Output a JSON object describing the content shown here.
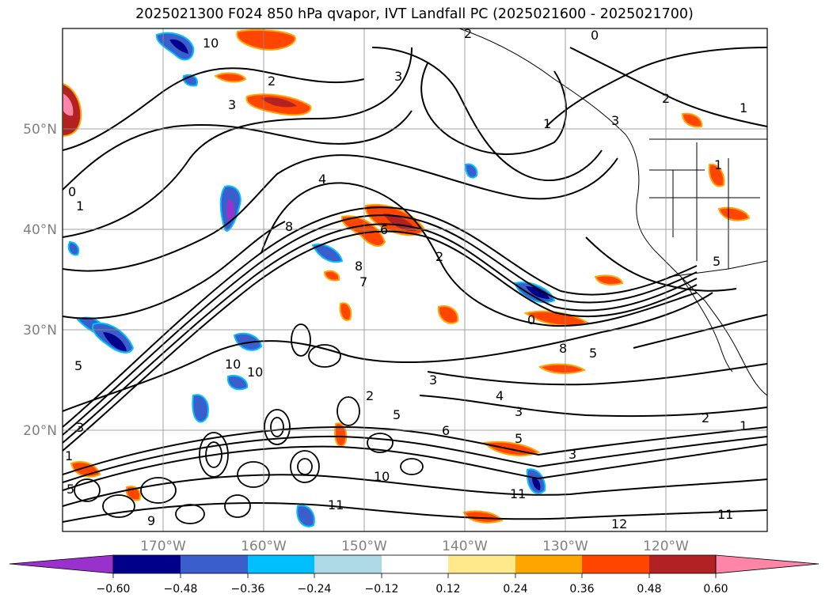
{
  "title": "2025021300 F024 850 hPa qvapor, IVT Landfall PC (2025021600 - 2025021700)",
  "map": {
    "lat_labels": [
      "50°N",
      "40°N",
      "30°N",
      "20°N"
    ],
    "lon_labels": [
      "170°W",
      "160°W",
      "150°W",
      "140°W",
      "130°W",
      "120°W"
    ],
    "grid_color": "#8c8c8c",
    "contour_labels": [
      {
        "text": "10"
      },
      {
        "text": "2"
      },
      {
        "text": "3"
      },
      {
        "text": "2"
      },
      {
        "text": "0"
      },
      {
        "text": "3"
      },
      {
        "text": "1"
      },
      {
        "text": "2"
      },
      {
        "text": "1"
      },
      {
        "text": "3"
      },
      {
        "text": "4"
      },
      {
        "text": "0"
      },
      {
        "text": "1"
      },
      {
        "text": "8"
      },
      {
        "text": "2"
      },
      {
        "text": "8"
      },
      {
        "text": "7"
      },
      {
        "text": "6"
      },
      {
        "text": "0"
      },
      {
        "text": "8"
      },
      {
        "text": "5"
      },
      {
        "text": "10"
      },
      {
        "text": "10"
      },
      {
        "text": "3"
      },
      {
        "text": "2"
      },
      {
        "text": "5"
      },
      {
        "text": "6"
      },
      {
        "text": "4"
      },
      {
        "text": "3"
      },
      {
        "text": "5"
      },
      {
        "text": "2"
      },
      {
        "text": "1"
      },
      {
        "text": "3"
      },
      {
        "text": "10"
      },
      {
        "text": "11"
      },
      {
        "text": "11"
      },
      {
        "text": "12"
      },
      {
        "text": "11"
      },
      {
        "text": "9"
      },
      {
        "text": "5"
      },
      {
        "text": "1"
      },
      {
        "text": "3"
      },
      {
        "text": "5"
      },
      {
        "text": "1"
      },
      {
        "text": "5"
      }
    ]
  },
  "colorbar": {
    "colors": [
      "#9932cc",
      "#00008b",
      "#3a5fcd",
      "#00bfff",
      "#add8e6",
      "#ffffff",
      "#ffe98a",
      "#ffa500",
      "#ff4500",
      "#b22222",
      "#ff85a8",
      "#ff85a8"
    ],
    "tick_labels": [
      "−0.60",
      "−0.48",
      "−0.36",
      "−0.24",
      "−0.12",
      "0.12",
      "0.24",
      "0.36",
      "0.48",
      "0.60"
    ]
  },
  "colors": {
    "negative_strong": "#00008b",
    "negative_mid": "#3a5fcd",
    "negative_light": "#00bfff",
    "positive_light": "#ffa500",
    "positive_mid": "#ff4500",
    "positive_strong": "#b22222",
    "positive_extreme": "#ff85a8",
    "contour": "#000000"
  }
}
